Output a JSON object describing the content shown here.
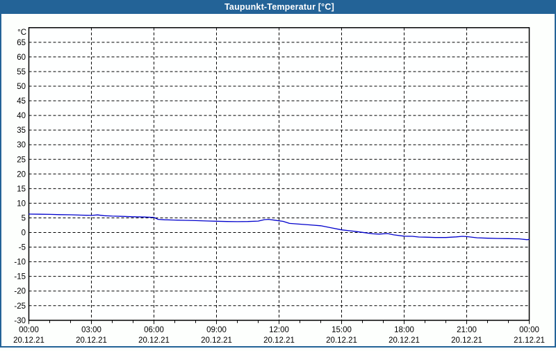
{
  "window": {
    "title": "Taupunkt-Temperatur [°C]"
  },
  "colors": {
    "frame_blue": "#236397",
    "line_blue": "#0000cc",
    "grid_black": "#000000",
    "plot_background": "#feffff",
    "window_background": "#fdfffd",
    "label_black": "#000000",
    "title_text": "#ffffff"
  },
  "chart_data": {
    "type": "line",
    "title": "Taupunkt-Temperatur [°C]",
    "y_unit_label": "°C",
    "ylim": [
      -30,
      70
    ],
    "ytick_step": 5,
    "yticks": [
      65,
      60,
      55,
      50,
      45,
      40,
      35,
      30,
      25,
      20,
      15,
      10,
      5,
      0,
      -5,
      -10,
      -15,
      -20,
      -25,
      -30
    ],
    "x_hours_range": [
      0,
      24
    ],
    "minor_xtick_every_hours": 1,
    "grid": "dashed",
    "legend_position": "none",
    "xticks": [
      {
        "hour": 0,
        "time": "00:00",
        "date": "20.12.21"
      },
      {
        "hour": 3,
        "time": "03:00",
        "date": "20.12.21"
      },
      {
        "hour": 6,
        "time": "06:00",
        "date": "20.12.21"
      },
      {
        "hour": 9,
        "time": "09:00",
        "date": "20.12.21"
      },
      {
        "hour": 12,
        "time": "12:00",
        "date": "20.12.21"
      },
      {
        "hour": 15,
        "time": "15:00",
        "date": "20.12.21"
      },
      {
        "hour": 18,
        "time": "18:00",
        "date": "20.12.21"
      },
      {
        "hour": 21,
        "time": "21:00",
        "date": "20.12.21"
      },
      {
        "hour": 24,
        "time": "00:00",
        "date": "21.12.21"
      }
    ],
    "series": [
      {
        "name": "Taupunkt-Temperatur",
        "color": "#0000cc",
        "points": [
          [
            0,
            6.3
          ],
          [
            0.5,
            6.25
          ],
          [
            1,
            6.2
          ],
          [
            1.5,
            6.1
          ],
          [
            2,
            6.05
          ],
          [
            2.5,
            5.95
          ],
          [
            3,
            5.85
          ],
          [
            3.3,
            6.0
          ],
          [
            3.6,
            5.75
          ],
          [
            4,
            5.6
          ],
          [
            4.5,
            5.5
          ],
          [
            5,
            5.4
          ],
          [
            5.5,
            5.3
          ],
          [
            6,
            5.15
          ],
          [
            6.2,
            4.5
          ],
          [
            6.5,
            4.35
          ],
          [
            7,
            4.25
          ],
          [
            7.5,
            4.15
          ],
          [
            8,
            4.05
          ],
          [
            8.5,
            3.95
          ],
          [
            9,
            3.85
          ],
          [
            9.5,
            3.75
          ],
          [
            10,
            3.7
          ],
          [
            10.5,
            3.75
          ],
          [
            11,
            3.9
          ],
          [
            11.3,
            4.4
          ],
          [
            11.5,
            4.5
          ],
          [
            11.8,
            4.2
          ],
          [
            12,
            4.0
          ],
          [
            12.2,
            3.8
          ],
          [
            12.5,
            3.1
          ],
          [
            13,
            2.85
          ],
          [
            13.5,
            2.6
          ],
          [
            14,
            2.3
          ],
          [
            14.5,
            1.6
          ],
          [
            15,
            0.9
          ],
          [
            15.5,
            0.5
          ],
          [
            16,
            0.05
          ],
          [
            16.5,
            -0.45
          ],
          [
            16.8,
            -0.55
          ],
          [
            17.2,
            -0.35
          ],
          [
            17.5,
            -0.8
          ],
          [
            18,
            -1.25
          ],
          [
            18.4,
            -1.3
          ],
          [
            18.7,
            -1.55
          ],
          [
            19,
            -1.6
          ],
          [
            19.5,
            -1.7
          ],
          [
            20,
            -1.7
          ],
          [
            20.5,
            -1.5
          ],
          [
            20.8,
            -1.3
          ],
          [
            21,
            -1.4
          ],
          [
            21.5,
            -1.8
          ],
          [
            22,
            -1.95
          ],
          [
            22.5,
            -2.05
          ],
          [
            23,
            -2.1
          ],
          [
            23.5,
            -2.15
          ],
          [
            23.9,
            -2.45
          ],
          [
            24,
            -2.35
          ]
        ]
      }
    ]
  }
}
